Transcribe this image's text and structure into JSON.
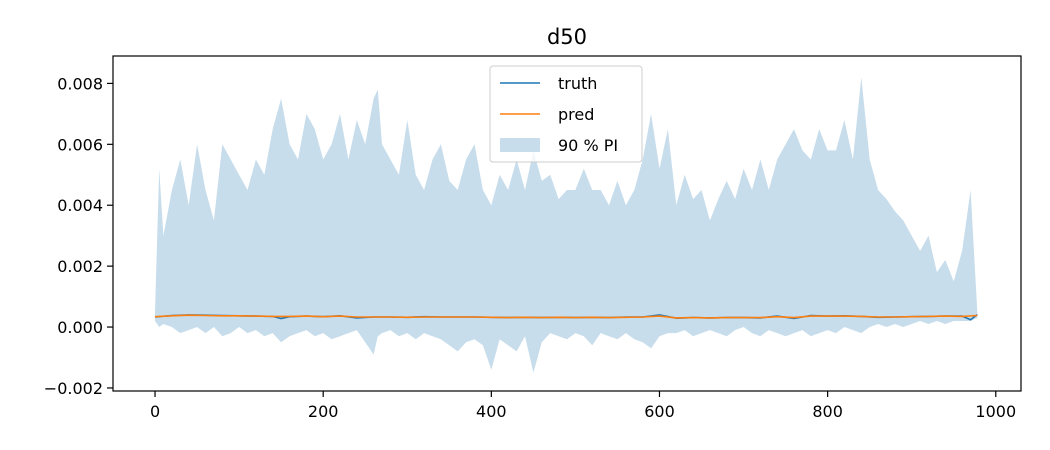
{
  "chart_data": {
    "type": "line",
    "title": "d50",
    "xlabel": "",
    "ylabel": "",
    "xlim": [
      -50,
      1030
    ],
    "ylim": [
      -0.0021,
      0.0089
    ],
    "xticks": [
      0,
      200,
      400,
      600,
      800,
      1000
    ],
    "xtick_labels": [
      "0",
      "200",
      "400",
      "600",
      "800",
      "1000"
    ],
    "yticks": [
      -0.002,
      0.0,
      0.002,
      0.004,
      0.006,
      0.008
    ],
    "ytick_labels": [
      "−0.002",
      "0.000",
      "0.002",
      "0.004",
      "0.006",
      "0.008"
    ],
    "grid": false,
    "legend_position": "top-center",
    "series": [
      {
        "name": "truth",
        "color": "#1f77b4",
        "x": [
          0,
          20,
          40,
          60,
          80,
          100,
          120,
          140,
          150,
          160,
          180,
          200,
          220,
          240,
          260,
          280,
          300,
          320,
          340,
          360,
          380,
          400,
          420,
          440,
          460,
          480,
          500,
          520,
          540,
          560,
          580,
          600,
          620,
          640,
          660,
          680,
          700,
          720,
          740,
          760,
          780,
          800,
          820,
          840,
          860,
          880,
          900,
          920,
          940,
          960,
          970,
          978
        ],
        "y": [
          0.00033,
          0.00038,
          0.0004,
          0.00039,
          0.00038,
          0.00037,
          0.00036,
          0.00035,
          0.00028,
          0.00034,
          0.00036,
          0.00034,
          0.00037,
          0.0003,
          0.00033,
          0.00033,
          0.00032,
          0.00034,
          0.00033,
          0.00033,
          0.00033,
          0.00032,
          0.00031,
          0.00032,
          0.00031,
          0.00032,
          0.00031,
          0.00032,
          0.00031,
          0.00033,
          0.00033,
          0.0004,
          0.00029,
          0.00031,
          0.0003,
          0.00031,
          0.00031,
          0.0003,
          0.00036,
          0.00028,
          0.00038,
          0.00036,
          0.00037,
          0.00035,
          0.00032,
          0.00033,
          0.00034,
          0.00035,
          0.00036,
          0.00036,
          0.00024,
          0.00041
        ]
      },
      {
        "name": "pred",
        "color": "#ff7f0e",
        "x": [
          0,
          20,
          40,
          60,
          80,
          100,
          120,
          140,
          160,
          180,
          200,
          220,
          240,
          260,
          280,
          300,
          320,
          340,
          360,
          380,
          400,
          420,
          440,
          460,
          480,
          500,
          520,
          540,
          560,
          580,
          600,
          620,
          640,
          660,
          680,
          700,
          720,
          740,
          760,
          780,
          800,
          820,
          840,
          860,
          880,
          900,
          920,
          940,
          960,
          978
        ],
        "y": [
          0.00034,
          0.00037,
          0.00039,
          0.00038,
          0.00037,
          0.00037,
          0.00036,
          0.00035,
          0.00035,
          0.00036,
          0.00034,
          0.00036,
          0.00033,
          0.00033,
          0.00033,
          0.00032,
          0.00033,
          0.00033,
          0.00033,
          0.00033,
          0.00032,
          0.00031,
          0.00032,
          0.00031,
          0.00032,
          0.00031,
          0.00032,
          0.00031,
          0.00032,
          0.00033,
          0.00036,
          0.0003,
          0.00031,
          0.0003,
          0.00031,
          0.00031,
          0.00031,
          0.00034,
          0.00031,
          0.00036,
          0.00036,
          0.00036,
          0.00035,
          0.00033,
          0.00033,
          0.00034,
          0.00035,
          0.00036,
          0.00035,
          0.00038
        ]
      }
    ],
    "interval": {
      "name": "90 % PI",
      "color": "#1f77b4",
      "opacity": 0.25,
      "x": [
        0,
        5,
        10,
        20,
        30,
        40,
        50,
        60,
        70,
        80,
        90,
        100,
        110,
        120,
        130,
        140,
        150,
        160,
        170,
        180,
        190,
        200,
        210,
        220,
        230,
        240,
        250,
        260,
        265,
        270,
        280,
        290,
        300,
        310,
        320,
        330,
        340,
        350,
        360,
        370,
        380,
        390,
        400,
        410,
        420,
        430,
        440,
        450,
        460,
        470,
        480,
        490,
        500,
        510,
        520,
        530,
        540,
        550,
        560,
        570,
        580,
        590,
        600,
        610,
        620,
        630,
        640,
        650,
        660,
        670,
        680,
        690,
        700,
        710,
        720,
        730,
        740,
        750,
        760,
        770,
        780,
        790,
        800,
        810,
        820,
        830,
        840,
        850,
        860,
        870,
        880,
        890,
        900,
        910,
        920,
        930,
        940,
        950,
        960,
        970,
        978
      ],
      "upper": [
        0.0005,
        0.0052,
        0.003,
        0.0045,
        0.0055,
        0.004,
        0.006,
        0.0045,
        0.0035,
        0.006,
        0.0055,
        0.005,
        0.0045,
        0.0055,
        0.005,
        0.0065,
        0.0075,
        0.006,
        0.0055,
        0.007,
        0.0065,
        0.0055,
        0.006,
        0.007,
        0.0055,
        0.0068,
        0.006,
        0.0075,
        0.0078,
        0.006,
        0.0055,
        0.005,
        0.0068,
        0.005,
        0.0045,
        0.0055,
        0.006,
        0.0048,
        0.0045,
        0.0055,
        0.006,
        0.0045,
        0.004,
        0.005,
        0.0045,
        0.0055,
        0.0045,
        0.0058,
        0.0048,
        0.005,
        0.0042,
        0.0045,
        0.0045,
        0.0052,
        0.0045,
        0.0045,
        0.004,
        0.0048,
        0.004,
        0.0045,
        0.0055,
        0.007,
        0.0052,
        0.0065,
        0.004,
        0.005,
        0.0042,
        0.0045,
        0.0035,
        0.0042,
        0.0048,
        0.0042,
        0.0052,
        0.0045,
        0.0055,
        0.0045,
        0.0055,
        0.006,
        0.0065,
        0.0058,
        0.0055,
        0.0065,
        0.0058,
        0.0058,
        0.0068,
        0.0055,
        0.0082,
        0.0055,
        0.0045,
        0.0042,
        0.0038,
        0.0035,
        0.003,
        0.0025,
        0.003,
        0.0018,
        0.0022,
        0.0015,
        0.0025,
        0.0045,
        0.0005
      ],
      "lower": [
        0.0002,
        0.0,
        0.0001,
        0.0,
        -0.0002,
        -0.0001,
        0.0,
        -0.0002,
        0.0,
        -0.0003,
        -0.0002,
        0.0,
        -0.0002,
        -0.0001,
        -0.0003,
        -0.0002,
        -0.0005,
        -0.0003,
        -0.0002,
        -0.0001,
        -0.0003,
        -0.0002,
        -0.0004,
        -0.0003,
        -0.0002,
        -0.0001,
        -0.0005,
        -0.0009,
        -0.0003,
        -0.0002,
        -0.0001,
        -0.0003,
        -0.0002,
        -0.0004,
        -0.0002,
        -0.0003,
        -0.0004,
        -0.0006,
        -0.0008,
        -0.0005,
        -0.0004,
        -0.0006,
        -0.0014,
        -0.0004,
        -0.0006,
        -0.0008,
        -0.0003,
        -0.0015,
        -0.0005,
        -0.0002,
        -0.0003,
        -0.0004,
        -0.0002,
        -0.0003,
        -0.0006,
        -0.0002,
        -0.0003,
        -0.0004,
        -0.0002,
        -0.0004,
        -0.0005,
        -0.0007,
        -0.0003,
        -0.0002,
        -0.0002,
        -0.0001,
        -0.0003,
        -0.0002,
        -0.0001,
        -0.0002,
        -0.0003,
        -0.0001,
        0.0,
        -0.0002,
        -0.0003,
        -0.0001,
        -0.0002,
        -0.0003,
        -0.0002,
        -0.0001,
        -0.0003,
        -0.0002,
        -0.0001,
        -0.0002,
        0.0,
        -0.0001,
        -0.0002,
        0.0,
        0.0001,
        0.0,
        0.0001,
        0.0,
        0.0001,
        0.0002,
        0.0001,
        0.0002,
        0.0001,
        0.0002,
        0.0002,
        0.0002,
        0.0003
      ]
    }
  }
}
